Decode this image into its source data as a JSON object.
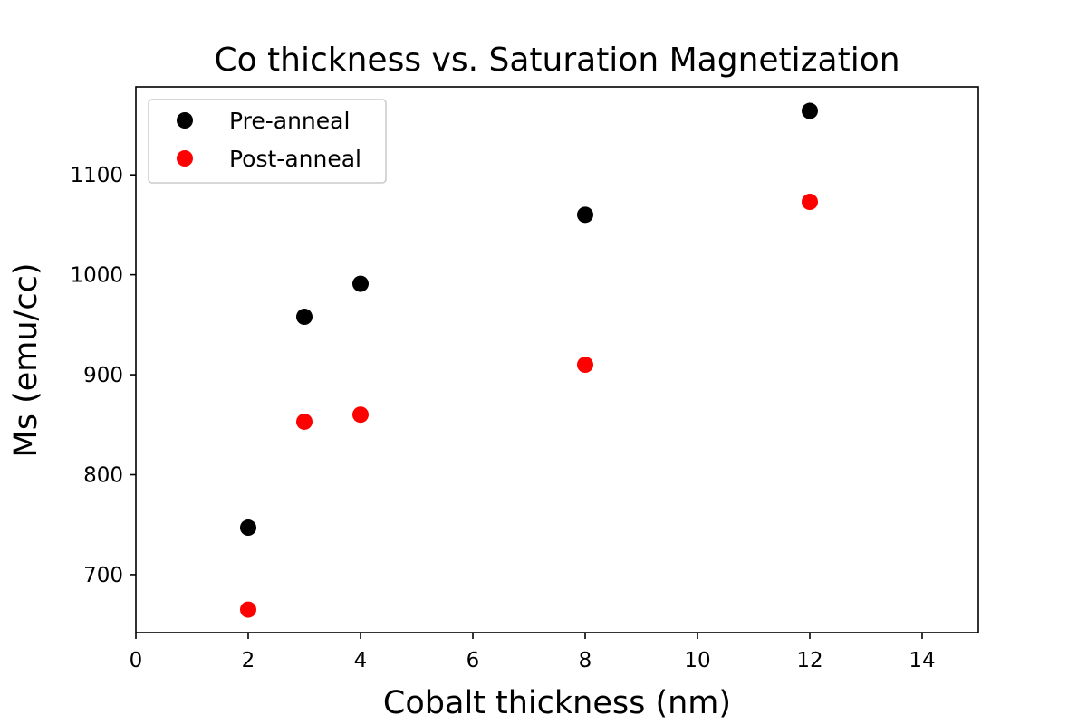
{
  "chart_data": {
    "type": "scatter",
    "title": "Co thickness vs. Saturation Magnetization",
    "xlabel": "Cobalt thickness (nm)",
    "ylabel": "Ms (emu/cc)",
    "xlim": [
      0,
      15
    ],
    "ylim": [
      642,
      1188
    ],
    "xticks": [
      0,
      2,
      4,
      6,
      8,
      10,
      12,
      14
    ],
    "yticks": [
      700,
      800,
      900,
      1000,
      1100
    ],
    "grid": false,
    "legend_position": "top-left",
    "series": [
      {
        "name": "Pre-anneal",
        "color": "#000000",
        "x": [
          2,
          3,
          4,
          8,
          12
        ],
        "y": [
          747,
          958,
          991,
          1060,
          1164
        ]
      },
      {
        "name": "Post-anneal",
        "color": "#ff0000",
        "x": [
          2,
          3,
          4,
          8,
          12
        ],
        "y": [
          665,
          853,
          860,
          910,
          1073
        ]
      }
    ]
  }
}
